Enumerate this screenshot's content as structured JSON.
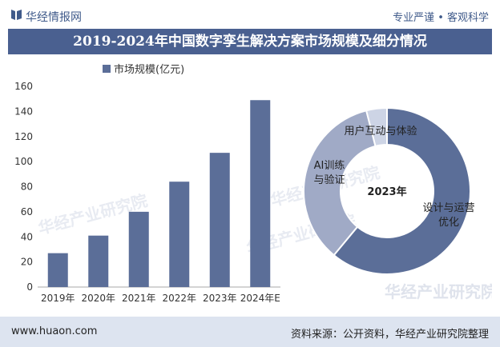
{
  "header": {
    "site_name": "华经情报网",
    "slogan": "专业严谨 • 客观科学"
  },
  "title": "2019-2024年中国数字孪生解决方案市场规模及细分情况",
  "chart_data": [
    {
      "type": "bar",
      "legend": "市场规模(亿元)",
      "categories": [
        "2019年",
        "2020年",
        "2021年",
        "2022年",
        "2023年",
        "2024年E"
      ],
      "values": [
        27,
        41,
        60,
        84,
        107,
        149
      ],
      "ylim": [
        0,
        160
      ],
      "yticks": [
        0,
        20,
        40,
        60,
        80,
        100,
        120,
        140,
        160
      ],
      "colors": {
        "bar": "#5b6e98"
      }
    },
    {
      "type": "pie",
      "center_label": "2023年",
      "slices": [
        {
          "label": "设计与运营优化",
          "value": 61,
          "color": "#5b6e98"
        },
        {
          "label": "AI训练与验证",
          "value": 35,
          "color": "#a0aac6"
        },
        {
          "label": "用户互动与体验",
          "value": 4,
          "color": "#cdd4e5"
        }
      ]
    }
  ],
  "watermarks": [
    "华经产业研究院",
    "www.huaon.com"
  ],
  "footer": {
    "website": "www.huaon.com",
    "source": "资料来源：公开资料，华经产业研究院整理"
  }
}
